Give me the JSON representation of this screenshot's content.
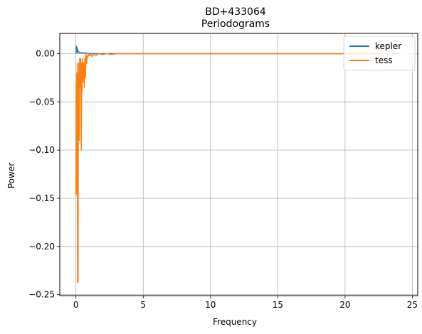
{
  "chart_data": {
    "type": "line",
    "title": "BD+433064",
    "subtitle": "Periodograms",
    "xlabel": "Frequency",
    "ylabel": "Power",
    "xlim": [
      -1.2,
      25.4
    ],
    "ylim": [
      -0.251,
      0.021
    ],
    "xticks": [
      0,
      5,
      10,
      15,
      20,
      25
    ],
    "xtick_labels": [
      "0",
      "5",
      "10",
      "15",
      "20",
      "25"
    ],
    "yticks": [
      0.0,
      -0.05,
      -0.1,
      -0.15,
      -0.2,
      -0.25
    ],
    "ytick_labels": [
      "0.00",
      "−0.05",
      "−0.10",
      "−0.15",
      "−0.20",
      "−0.25"
    ],
    "grid": true,
    "legend_position": "top-right",
    "series": [
      {
        "name": "kepler",
        "color": "#1f77b4",
        "x": [
          0.0,
          0.03,
          0.06,
          0.1,
          0.15,
          0.2,
          0.3,
          0.5,
          0.8,
          1.2,
          2.0,
          5.0,
          10.0,
          15.0,
          20.0,
          24.0
        ],
        "y": [
          0.0,
          0.008,
          0.002,
          0.006,
          0.001,
          0.002,
          0.0005,
          0.001,
          0.0003,
          0.0,
          0.0,
          0.0,
          0.0,
          0.0,
          0.0,
          0.0
        ]
      },
      {
        "name": "tess",
        "color": "#ff7f0e",
        "x": [
          0.0,
          0.02,
          0.04,
          0.06,
          0.08,
          0.1,
          0.12,
          0.14,
          0.16,
          0.18,
          0.2,
          0.22,
          0.25,
          0.28,
          0.3,
          0.33,
          0.36,
          0.4,
          0.43,
          0.46,
          0.5,
          0.53,
          0.56,
          0.6,
          0.63,
          0.66,
          0.7,
          0.75,
          0.8,
          0.85,
          0.9,
          0.95,
          1.0,
          1.1,
          1.2,
          1.3,
          1.5,
          1.7,
          2.0,
          2.3,
          2.6,
          3.0,
          4.0,
          6.0,
          10.0,
          15.0,
          20.0,
          24.0
        ],
        "y": [
          -0.148,
          -0.03,
          -0.145,
          -0.02,
          -0.09,
          -0.01,
          -0.238,
          -0.06,
          -0.237,
          -0.02,
          -0.06,
          -0.01,
          -0.09,
          -0.005,
          -0.02,
          -0.035,
          -0.005,
          -0.1,
          -0.01,
          -0.04,
          -0.005,
          -0.03,
          -0.02,
          -0.01,
          -0.035,
          -0.005,
          -0.025,
          0.0,
          -0.01,
          -0.002,
          -0.003,
          0.0,
          -0.002,
          -0.001,
          -0.003,
          -0.001,
          -0.002,
          0.0,
          -0.001,
          0.0,
          -0.001,
          0.0,
          0.0,
          0.0,
          0.0,
          0.0,
          0.0,
          0.0
        ]
      }
    ]
  }
}
